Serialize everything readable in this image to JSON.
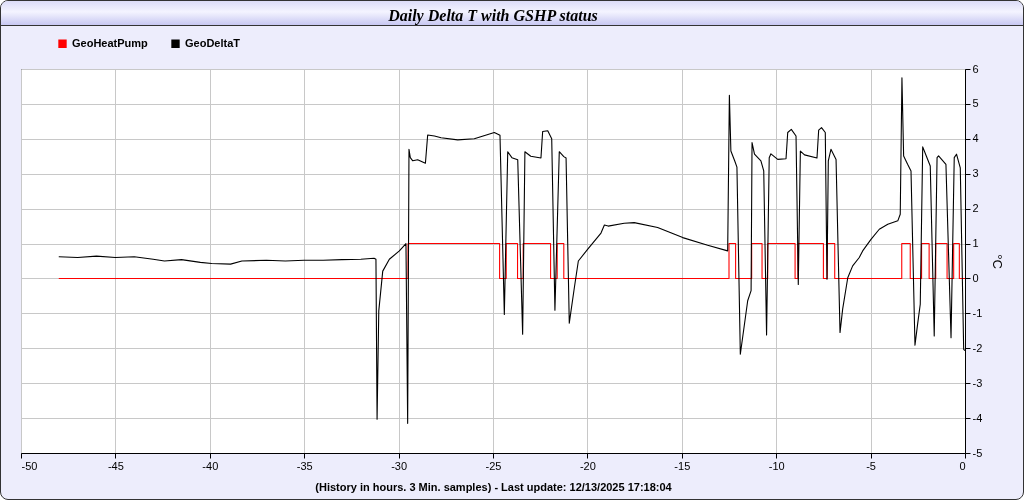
{
  "chart_data": {
    "type": "line",
    "title": "Daily Delta T with GSHP status",
    "xlabel": "(History in hours. 3 Min. samples) - Last update: 12/13/2025 17:18:04",
    "ylabel": "°C",
    "xlim": [
      -50,
      0
    ],
    "xticks": [
      -50,
      -45,
      -40,
      -35,
      -30,
      -25,
      -20,
      -15,
      -10,
      -5,
      0
    ],
    "ylim": [
      -5,
      6
    ],
    "yticks": [
      -5,
      -4,
      -3,
      -2,
      -1,
      0,
      1,
      2,
      3,
      4,
      5,
      6
    ],
    "grid": true,
    "legend": "top left",
    "series": [
      {
        "name": "GeoHeatPump",
        "color": "#ff0000",
        "type": "step",
        "x": [
          -48,
          -29.5,
          -24.65,
          -24.3,
          -23.7,
          -23.4,
          -21.95,
          -21.6,
          -21.25,
          -12.5,
          -12.15,
          -11.3,
          -10.75,
          -10.45,
          -9.0,
          -8.85,
          -7.5,
          -7.3,
          -6.9,
          -3.35,
          -2.9,
          -2.3,
          -1.9,
          -1.55,
          -0.95,
          -0.6,
          -0.3,
          0
        ],
        "values": [
          0,
          1,
          0,
          1,
          0,
          1,
          0,
          1,
          0,
          1,
          0,
          1,
          0,
          1,
          0,
          1,
          0,
          1,
          0,
          1,
          0,
          1,
          0,
          1,
          0,
          1,
          0,
          0
        ]
      },
      {
        "name": "GeoDeltaT",
        "color": "#000000",
        "x": [
          -48.0,
          -47.0,
          -46.0,
          -45.0,
          -44.0,
          -43.0,
          -42.4,
          -41.5,
          -40.5,
          -39.9,
          -38.9,
          -38.3,
          -37.0,
          -36.0,
          -35.0,
          -34.0,
          -33.0,
          -32.0,
          -31.3,
          -31.2,
          -31.14,
          -31.05,
          -30.84,
          -30.49,
          -29.96,
          -29.61,
          -29.52,
          -29.45,
          -29.38,
          -29.25,
          -28.99,
          -28.58,
          -28.46,
          -28.1,
          -27.75,
          -26.87,
          -25.99,
          -24.93,
          -24.63,
          -24.4,
          -24.22,
          -24.0,
          -23.69,
          -23.43,
          -23.31,
          -23.0,
          -22.46,
          -22.37,
          -22.1,
          -21.89,
          -21.72,
          -21.49,
          -21.25,
          -21.13,
          -20.96,
          -20.69,
          -20.48,
          -19.98,
          -19.28,
          -19.1,
          -18.9,
          -18.05,
          -17.52,
          -16.28,
          -14.95,
          -13.63,
          -12.57,
          -12.48,
          -12.4,
          -12.2,
          -12.08,
          -11.9,
          -11.51,
          -11.33,
          -11.28,
          -11.15,
          -10.81,
          -10.66,
          -10.51,
          -10.37,
          -10.28,
          -9.92,
          -9.48,
          -9.39,
          -9.2,
          -8.95,
          -8.83,
          -8.72,
          -8.5,
          -7.84,
          -7.75,
          -7.6,
          -7.4,
          -7.31,
          -7.24,
          -7.1,
          -6.83,
          -6.62,
          -6.48,
          -6.21,
          -5.95,
          -5.6,
          -5.42,
          -4.98,
          -4.54,
          -4.09,
          -3.56,
          -3.43,
          -3.34,
          -3.25,
          -3.04,
          -2.86,
          -2.65,
          -2.51,
          -2.37,
          -2.24,
          -2.05,
          -1.84,
          -1.63,
          -1.48,
          -1.4,
          -1.01,
          -0.74,
          -0.57,
          -0.45,
          -0.25,
          -0.07,
          0
        ],
        "values": [
          0.62,
          0.6,
          0.64,
          0.6,
          0.62,
          0.55,
          0.5,
          0.54,
          0.46,
          0.43,
          0.41,
          0.5,
          0.52,
          0.5,
          0.52,
          0.52,
          0.54,
          0.55,
          0.58,
          0.55,
          -4.03,
          -0.93,
          0.21,
          0.55,
          0.79,
          1.0,
          -4.15,
          3.7,
          3.46,
          3.37,
          3.4,
          3.3,
          4.11,
          4.08,
          4.03,
          3.97,
          4.0,
          4.18,
          4.1,
          -1.03,
          3.63,
          3.46,
          3.4,
          -1.6,
          3.63,
          3.5,
          3.45,
          4.21,
          4.23,
          4.0,
          -0.91,
          3.63,
          3.49,
          3.45,
          -1.28,
          -0.26,
          0.5,
          0.84,
          1.3,
          1.53,
          1.5,
          1.58,
          1.6,
          1.46,
          1.17,
          0.95,
          0.79,
          5.25,
          3.65,
          3.37,
          3.19,
          -2.17,
          -0.64,
          -0.35,
          3.89,
          3.56,
          3.37,
          3.08,
          -1.62,
          3.46,
          3.57,
          3.41,
          3.43,
          4.18,
          4.27,
          4.08,
          -0.17,
          3.65,
          3.54,
          3.45,
          4.25,
          4.32,
          4.18,
          -0.02,
          3.37,
          3.7,
          3.41,
          -1.55,
          -0.88,
          0.02,
          0.36,
          0.6,
          0.79,
          1.12,
          1.41,
          1.55,
          1.65,
          1.84,
          5.75,
          3.51,
          3.27,
          3.08,
          -1.91,
          -1.31,
          -0.74,
          3.77,
          3.51,
          3.22,
          -1.65,
          3.46,
          3.51,
          3.27,
          -1.7,
          3.46,
          3.56,
          3.17,
          -2.03,
          -2.07
        ]
      }
    ]
  }
}
